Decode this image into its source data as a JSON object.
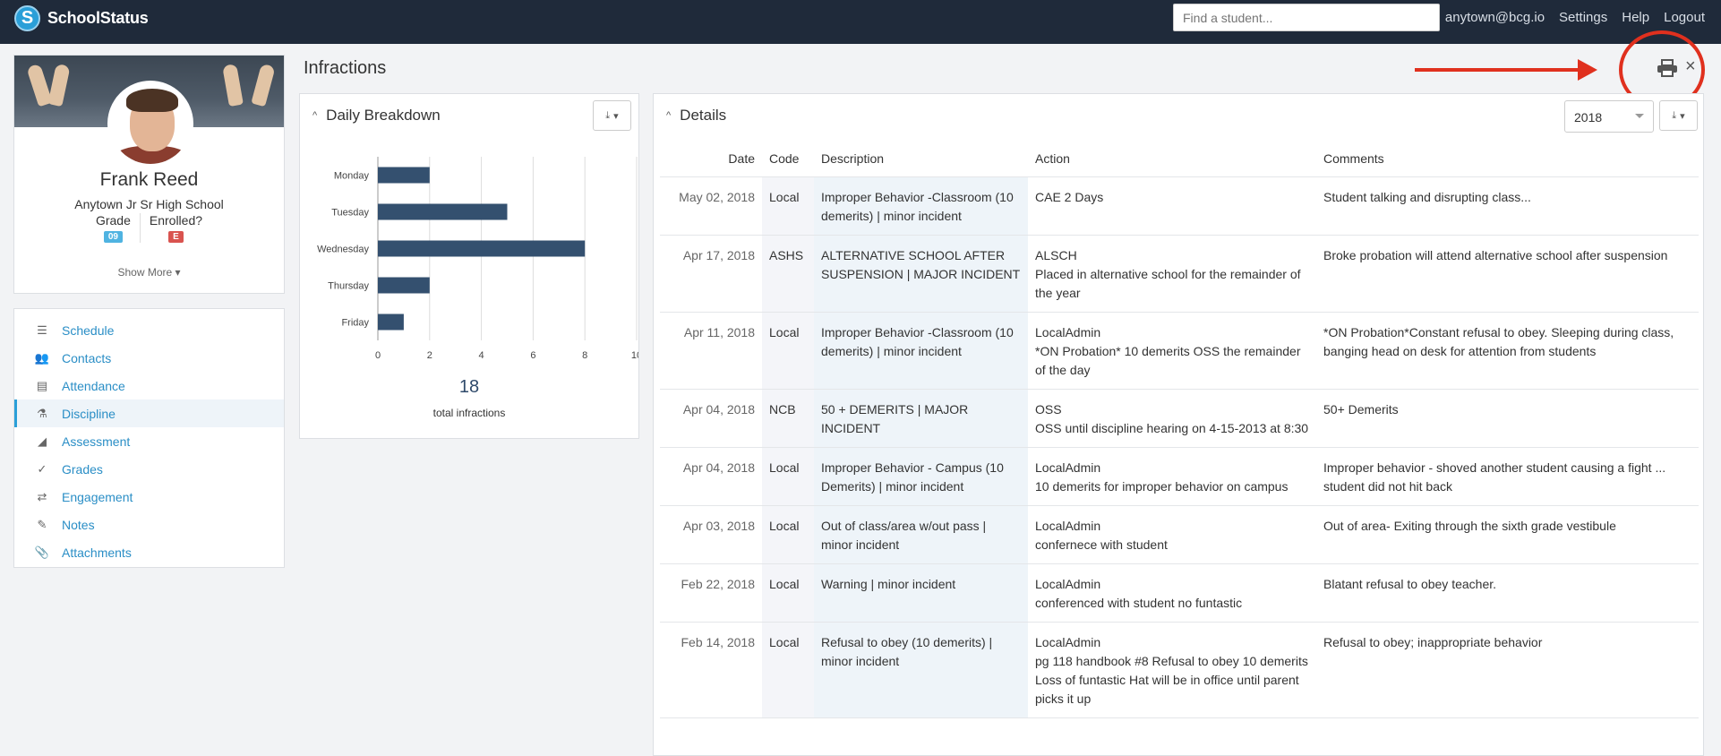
{
  "app": {
    "name": "SchoolStatus"
  },
  "search": {
    "placeholder": "Find a student..."
  },
  "toplinks": {
    "user": "anytown@bcg.io",
    "settings": "Settings",
    "help": "Help",
    "logout": "Logout"
  },
  "student": {
    "name": "Frank Reed",
    "school": "Anytown Jr Sr High School",
    "grade_label": "Grade",
    "grade_value": "09",
    "enrolled_label": "Enrolled?",
    "enrolled_value": "E",
    "show_more": "Show More ▾"
  },
  "nav": [
    {
      "label": "Schedule",
      "icon": "list-icon",
      "glyph": "☰",
      "active": false
    },
    {
      "label": "Contacts",
      "icon": "users-icon",
      "glyph": "👥",
      "active": false
    },
    {
      "label": "Attendance",
      "icon": "calendar-icon",
      "glyph": "▤",
      "active": false
    },
    {
      "label": "Discipline",
      "icon": "flask-icon",
      "glyph": "⚗",
      "active": true
    },
    {
      "label": "Assessment",
      "icon": "area-chart-icon",
      "glyph": "◢",
      "active": false
    },
    {
      "label": "Grades",
      "icon": "check-icon",
      "glyph": "✓",
      "active": false
    },
    {
      "label": "Engagement",
      "icon": "exchange-icon",
      "glyph": "⇄",
      "active": false
    },
    {
      "label": "Notes",
      "icon": "pencil-icon",
      "glyph": "✎",
      "active": false
    },
    {
      "label": "Attachments",
      "icon": "paperclip-icon",
      "glyph": "📎",
      "active": false
    }
  ],
  "page": {
    "title": "Infractions"
  },
  "breakdown": {
    "title": "Daily Breakdown",
    "total": "18",
    "total_label": "total infractions"
  },
  "chart_data": {
    "type": "bar",
    "orientation": "horizontal",
    "categories": [
      "Monday",
      "Tuesday",
      "Wednesday",
      "Thursday",
      "Friday"
    ],
    "values": [
      2,
      5,
      8,
      2,
      1
    ],
    "xticks": [
      "0",
      "2",
      "4",
      "6",
      "8",
      "10"
    ],
    "xlim": [
      0,
      10
    ],
    "grid": true,
    "bar_color": "#34506f"
  },
  "details": {
    "title": "Details",
    "year": "2018",
    "columns": [
      "Date",
      "Code",
      "Description",
      "Action",
      "Comments"
    ],
    "rows": [
      {
        "date": "May 02, 2018",
        "code": "Local",
        "description": "Improper Behavior -Classroom (10 demerits) | minor incident",
        "action_title": "CAE 2 Days",
        "action_detail": "",
        "comments": "Student talking and disrupting class..."
      },
      {
        "date": "Apr 17, 2018",
        "code": "ASHS",
        "description": "ALTERNATIVE SCHOOL AFTER SUSPENSION | MAJOR INCIDENT",
        "action_title": "ALSCH",
        "action_detail": "Placed in alternative school for the remainder of the year",
        "comments": "Broke probation will attend alternative school after suspension"
      },
      {
        "date": "Apr 11, 2018",
        "code": "Local",
        "description": "Improper Behavior -Classroom (10 demerits) | minor incident",
        "action_title": "LocalAdmin",
        "action_detail": "*ON Probation* 10 demerits OSS the remainder of the day",
        "comments": "*ON Probation*Constant refusal to obey. Sleeping during class, banging head on desk for attention from students"
      },
      {
        "date": "Apr 04, 2018",
        "code": "NCB",
        "description": "50 + DEMERITS | MAJOR INCIDENT",
        "action_title": "OSS",
        "action_detail": "OSS until discipline hearing on 4-15-2013 at 8:30",
        "comments": "50+ Demerits"
      },
      {
        "date": "Apr 04, 2018",
        "code": "Local",
        "description": "Improper Behavior - Campus (10 Demerits) | minor incident",
        "action_title": "LocalAdmin",
        "action_detail": "10 demerits for improper behavior on campus",
        "comments": "Improper behavior - shoved another student causing a fight ... student did not hit back"
      },
      {
        "date": "Apr 03, 2018",
        "code": "Local",
        "description": "Out of class/area  w/out pass | minor incident",
        "action_title": "LocalAdmin",
        "action_detail": "confernece with student",
        "comments": "Out of area- Exiting through the sixth grade vestibule"
      },
      {
        "date": "Feb 22, 2018",
        "code": "Local",
        "description": "Warning | minor incident",
        "action_title": "LocalAdmin",
        "action_detail": "conferenced with student no funtastic",
        "comments": "Blatant refusal to obey teacher."
      },
      {
        "date": "Feb 14, 2018",
        "code": "Local",
        "description": "Refusal to obey (10 demerits) | minor incident",
        "action_title": "LocalAdmin",
        "action_detail": "pg 118 handbook #8 Refusal to obey 10 demerits Loss of funtastic Hat will be in office until parent picks it up",
        "comments": "Refusal to obey; inappropriate behavior"
      }
    ]
  },
  "colors": {
    "topbar": "#1f2a3a",
    "link": "#2a8ec6",
    "annotation": "#e0301e"
  }
}
